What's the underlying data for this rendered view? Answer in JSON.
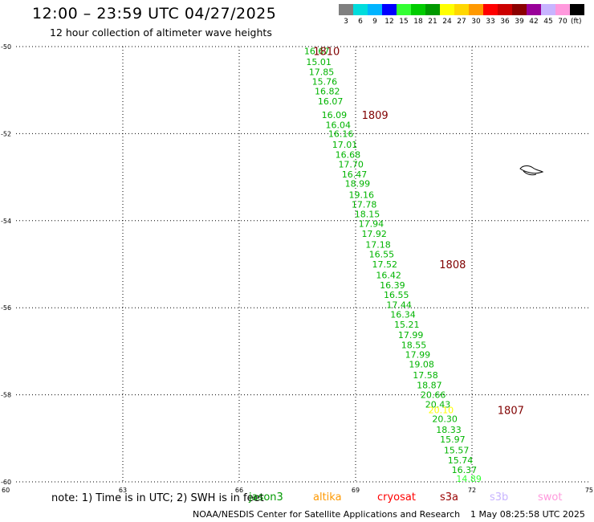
{
  "header": {
    "title": "12:00 – 23:59 UTC 04/27/2025",
    "subtitle": "12 hour collection of altimeter wave heights"
  },
  "color_scale": {
    "unit": "(ft)",
    "bins": [
      {
        "label": "3",
        "color": "#7f7f7f"
      },
      {
        "label": "6",
        "color": "#00dcdc"
      },
      {
        "label": "9",
        "color": "#00b4ff"
      },
      {
        "label": "12",
        "color": "#0000ff"
      },
      {
        "label": "15",
        "color": "#33ff33"
      },
      {
        "label": "18",
        "color": "#00cc00"
      },
      {
        "label": "21",
        "color": "#009900"
      },
      {
        "label": "24",
        "color": "#ffff00"
      },
      {
        "label": "27",
        "color": "#ffd700"
      },
      {
        "label": "30",
        "color": "#ff9900"
      },
      {
        "label": "33",
        "color": "#ff0000"
      },
      {
        "label": "36",
        "color": "#cc0000"
      },
      {
        "label": "39",
        "color": "#8b0000"
      },
      {
        "label": "42",
        "color": "#990099"
      },
      {
        "label": "45",
        "color": "#c8b4ff"
      },
      {
        "label": "70",
        "color": "#ff99dd"
      },
      {
        "label": "",
        "color": "#000000"
      }
    ]
  },
  "chart_data": {
    "type": "scatter",
    "title": "12:00 – 23:59 UTC 04/27/2025",
    "subtitle": "12 hour collection of altimeter wave heights",
    "xlabel": "",
    "ylabel": "",
    "xlim": [
      60,
      75
    ],
    "ylim": [
      -60,
      -50
    ],
    "x_ticks": [
      60,
      63,
      66,
      69,
      72,
      75
    ],
    "y_ticks": [
      -50,
      -52,
      -54,
      -56,
      -58,
      -60
    ],
    "x_tick_labels": [
      "60",
      "63",
      "66",
      "69",
      "72",
      "75"
    ],
    "y_tick_labels": [
      "-50",
      "-52",
      "-54",
      "-56",
      "-58",
      "-60"
    ],
    "grid": true,
    "x_grid": [
      63,
      66,
      69,
      72
    ],
    "y_grid": [
      -50,
      -52,
      -54,
      -56,
      -58,
      -60
    ],
    "track_points": [
      {
        "x": 68.0,
        "y": -50.1,
        "label": "16.67",
        "color": "#00b400"
      },
      {
        "x": 68.05,
        "y": -50.35,
        "label": "15.01",
        "color": "#00b400"
      },
      {
        "x": 68.12,
        "y": -50.58,
        "label": "17.85",
        "color": "#00b400"
      },
      {
        "x": 68.2,
        "y": -50.8,
        "label": "15.76",
        "color": "#00b400"
      },
      {
        "x": 68.27,
        "y": -51.02,
        "label": "16.82",
        "color": "#00b400"
      },
      {
        "x": 68.35,
        "y": -51.25,
        "label": "16.07",
        "color": "#00b400"
      },
      {
        "x": 68.45,
        "y": -51.57,
        "label": "16.09",
        "color": "#00b400"
      },
      {
        "x": 68.55,
        "y": -51.8,
        "label": "16.04",
        "color": "#00b400"
      },
      {
        "x": 68.62,
        "y": -52.0,
        "label": "16.16",
        "color": "#00b400"
      },
      {
        "x": 68.72,
        "y": -52.25,
        "label": "17.01",
        "color": "#00b400"
      },
      {
        "x": 68.8,
        "y": -52.48,
        "label": "16.68",
        "color": "#00b400"
      },
      {
        "x": 68.88,
        "y": -52.7,
        "label": "17.70",
        "color": "#00b400"
      },
      {
        "x": 68.97,
        "y": -52.93,
        "label": "16.47",
        "color": "#00b400"
      },
      {
        "x": 69.05,
        "y": -53.15,
        "label": "18.99",
        "color": "#00b400"
      },
      {
        "x": 69.15,
        "y": -53.4,
        "label": "19.16",
        "color": "#00b400"
      },
      {
        "x": 69.22,
        "y": -53.63,
        "label": "17.78",
        "color": "#00b400"
      },
      {
        "x": 69.3,
        "y": -53.85,
        "label": "18.15",
        "color": "#00b400"
      },
      {
        "x": 69.4,
        "y": -54.07,
        "label": "17.94",
        "color": "#00b400"
      },
      {
        "x": 69.48,
        "y": -54.3,
        "label": "17.92",
        "color": "#00b400"
      },
      {
        "x": 69.58,
        "y": -54.55,
        "label": "17.18",
        "color": "#00b400"
      },
      {
        "x": 69.67,
        "y": -54.77,
        "label": "16.55",
        "color": "#00b400"
      },
      {
        "x": 69.75,
        "y": -55.0,
        "label": "17.52",
        "color": "#00b400"
      },
      {
        "x": 69.85,
        "y": -55.25,
        "label": "16.42",
        "color": "#00b400"
      },
      {
        "x": 69.95,
        "y": -55.48,
        "label": "16.39",
        "color": "#00b400"
      },
      {
        "x": 70.05,
        "y": -55.7,
        "label": "16.55",
        "color": "#00b400"
      },
      {
        "x": 70.12,
        "y": -55.93,
        "label": "17.44",
        "color": "#00b400"
      },
      {
        "x": 70.22,
        "y": -56.15,
        "label": "16.34",
        "color": "#00b400"
      },
      {
        "x": 70.32,
        "y": -56.38,
        "label": "15.21",
        "color": "#00b400"
      },
      {
        "x": 70.42,
        "y": -56.62,
        "label": "17.99",
        "color": "#00b400"
      },
      {
        "x": 70.5,
        "y": -56.85,
        "label": "18.55",
        "color": "#00b400"
      },
      {
        "x": 70.6,
        "y": -57.08,
        "label": "17.99",
        "color": "#00b400"
      },
      {
        "x": 70.7,
        "y": -57.3,
        "label": "19.08",
        "color": "#00b400"
      },
      {
        "x": 70.8,
        "y": -57.55,
        "label": "17.58",
        "color": "#00b400"
      },
      {
        "x": 70.9,
        "y": -57.78,
        "label": "18.87",
        "color": "#00b400"
      },
      {
        "x": 71.0,
        "y": -58.0,
        "label": "20.66",
        "color": "#00b400"
      },
      {
        "x": 71.12,
        "y": -58.22,
        "label": "20.43",
        "color": "#00b400"
      },
      {
        "x": 71.2,
        "y": -58.35,
        "label": "20.10",
        "color": "#ffff00"
      },
      {
        "x": 71.3,
        "y": -58.55,
        "label": "20.30",
        "color": "#00b400"
      },
      {
        "x": 71.4,
        "y": -58.8,
        "label": "18.33",
        "color": "#00b400"
      },
      {
        "x": 71.5,
        "y": -59.02,
        "label": "15.97",
        "color": "#00b400"
      },
      {
        "x": 71.6,
        "y": -59.27,
        "label": "15.57",
        "color": "#00b400"
      },
      {
        "x": 71.7,
        "y": -59.5,
        "label": "15.74",
        "color": "#00b400"
      },
      {
        "x": 71.8,
        "y": -59.72,
        "label": "16.37",
        "color": "#00b400"
      },
      {
        "x": 71.92,
        "y": -59.93,
        "label": "14.89",
        "color": "#33ff33"
      }
    ],
    "time_labels": [
      {
        "x": 68.25,
        "y": -50.1,
        "label": "1810"
      },
      {
        "x": 69.5,
        "y": -51.57,
        "label": "1809"
      },
      {
        "x": 71.5,
        "y": -55.0,
        "label": "1808"
      },
      {
        "x": 73.0,
        "y": -58.35,
        "label": "1807"
      }
    ],
    "satellite_legend": [
      {
        "name": "jason3",
        "color": "#009900"
      },
      {
        "name": "altika",
        "color": "#ff9900"
      },
      {
        "name": "cryosat",
        "color": "#ff0000"
      },
      {
        "name": "s3a",
        "color": "#990000"
      },
      {
        "name": "s3b",
        "color": "#c8b4ff"
      },
      {
        "name": "swot",
        "color": "#ff99dd"
      }
    ]
  },
  "footer": {
    "note": "note: 1) Time is in UTC; 2) SWH is in feet",
    "credit": "NOAA/NESDIS Center for Satellite Applications and Research",
    "timestamp": "1 May 08:25:58 UTC 2025"
  },
  "colors": {
    "time_label": "#800000",
    "grid": "#000000"
  }
}
